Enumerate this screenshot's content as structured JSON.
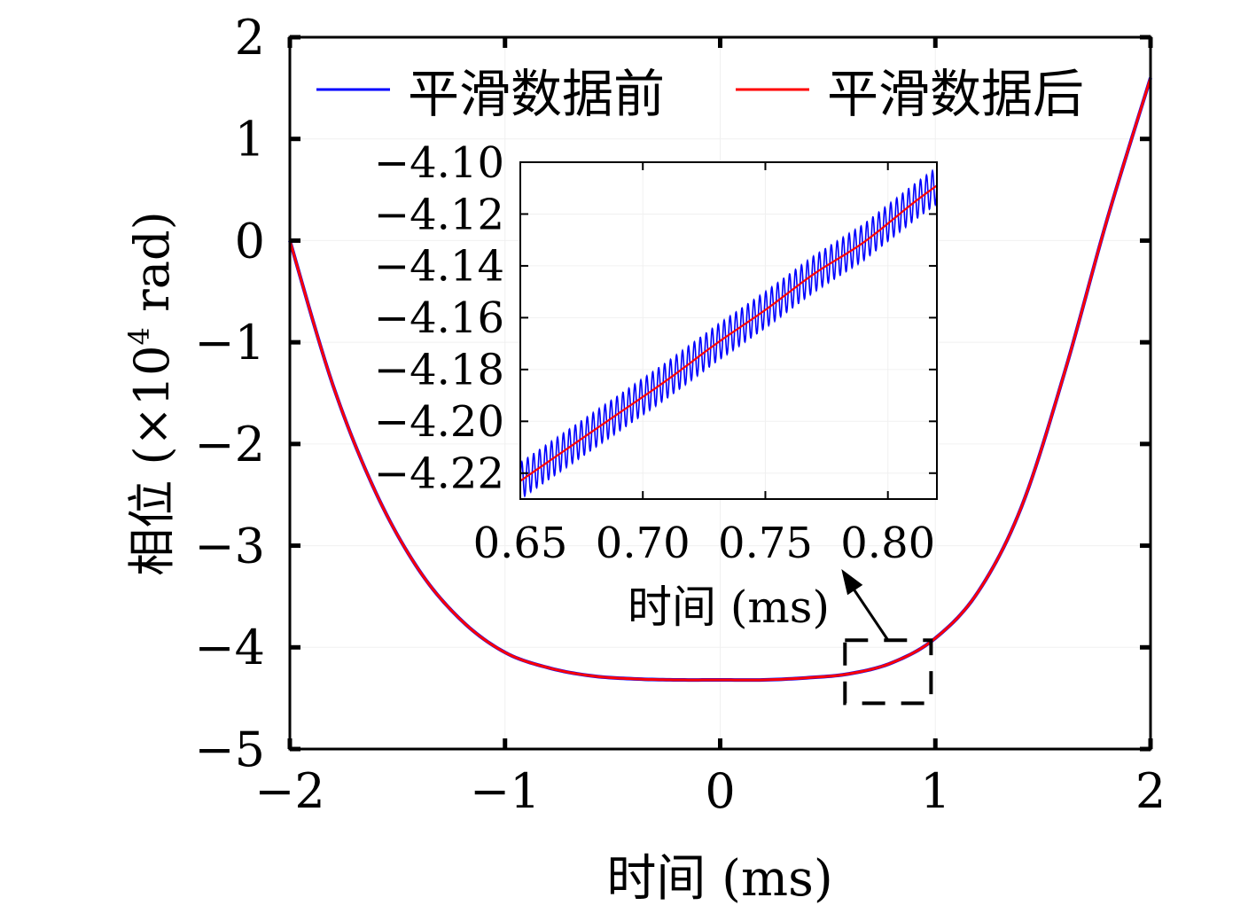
{
  "chart_data": [
    {
      "type": "line",
      "xlabel": "时间 (ms)",
      "ylabel": "相位 (×10⁴ rad)",
      "ylabel_main": "相位 (×10",
      "ylabel_exp": "4",
      "ylabel_tail": " rad)",
      "xlim": [
        -2,
        2
      ],
      "ylim": [
        -5,
        2
      ],
      "xticks": [
        -2,
        -1,
        0,
        1,
        2
      ],
      "xtick_labels": [
        "−2",
        "−1",
        "0",
        "1",
        "2"
      ],
      "yticks": [
        -5,
        -4,
        -3,
        -2,
        -1,
        0,
        1,
        2
      ],
      "ytick_labels": [
        "−5",
        "−4",
        "−3",
        "−2",
        "−1",
        "0",
        "1",
        "2"
      ],
      "grid": true,
      "legend_position": "top",
      "series": [
        {
          "name": "平滑数据前",
          "color": "#0000ff",
          "x": [
            -2.0,
            -1.8,
            -1.6,
            -1.4,
            -1.2,
            -1.0,
            -0.8,
            -0.6,
            -0.4,
            -0.2,
            0.0,
            0.2,
            0.4,
            0.6,
            0.8,
            1.0,
            1.2,
            1.4,
            1.6,
            1.8,
            2.0
          ],
          "y": [
            0.0,
            -1.42,
            -2.48,
            -3.24,
            -3.74,
            -4.05,
            -4.2,
            -4.28,
            -4.31,
            -4.32,
            -4.32,
            -4.32,
            -4.3,
            -4.26,
            -4.15,
            -3.91,
            -3.45,
            -2.62,
            -1.3,
            0.22,
            1.6
          ]
        },
        {
          "name": "平滑数据后",
          "color": "#ff0000",
          "x": [
            -2.0,
            -1.8,
            -1.6,
            -1.4,
            -1.2,
            -1.0,
            -0.8,
            -0.6,
            -0.4,
            -0.2,
            0.0,
            0.2,
            0.4,
            0.6,
            0.8,
            1.0,
            1.2,
            1.4,
            1.6,
            1.8,
            2.0
          ],
          "y": [
            0.0,
            -1.42,
            -2.48,
            -3.24,
            -3.74,
            -4.05,
            -4.2,
            -4.28,
            -4.31,
            -4.32,
            -4.32,
            -4.32,
            -4.3,
            -4.26,
            -4.15,
            -3.91,
            -3.45,
            -2.62,
            -1.3,
            0.22,
            1.6
          ]
        }
      ],
      "zoom_box": {
        "x": [
          0.58,
          0.98
        ],
        "y": [
          -4.55,
          -3.93
        ]
      }
    },
    {
      "type": "line",
      "role": "inset",
      "xlabel": "时间 (ms)",
      "ylabel": "",
      "xlim": [
        0.65,
        0.82
      ],
      "ylim": [
        -4.23,
        -4.1
      ],
      "xticks": [
        0.65,
        0.7,
        0.75,
        0.8
      ],
      "xtick_labels": [
        "0.65",
        "0.70",
        "0.75",
        "0.80"
      ],
      "yticks": [
        -4.22,
        -4.2,
        -4.18,
        -4.16,
        -4.14,
        -4.12,
        -4.1
      ],
      "ytick_labels": [
        "−4.22",
        "−4.20",
        "−4.18",
        "−4.16",
        "−4.14",
        "−4.12",
        "−4.10"
      ],
      "grid": true,
      "series": [
        {
          "name": "平滑数据前",
          "color": "#0000ff",
          "x": [
            0.65,
            0.82
          ],
          "y": [
            -4.223,
            -4.109
          ],
          "oscillation_amplitude": 0.007,
          "oscillation_cycles": 70
        },
        {
          "name": "平滑数据后",
          "color": "#ff0000",
          "x": [
            0.65,
            0.67,
            0.69,
            0.71,
            0.73,
            0.75,
            0.77,
            0.79,
            0.81,
            0.82
          ],
          "y": [
            -4.223,
            -4.21,
            -4.197,
            -4.184,
            -4.17,
            -4.157,
            -4.143,
            -4.131,
            -4.116,
            -4.109
          ]
        }
      ]
    }
  ]
}
